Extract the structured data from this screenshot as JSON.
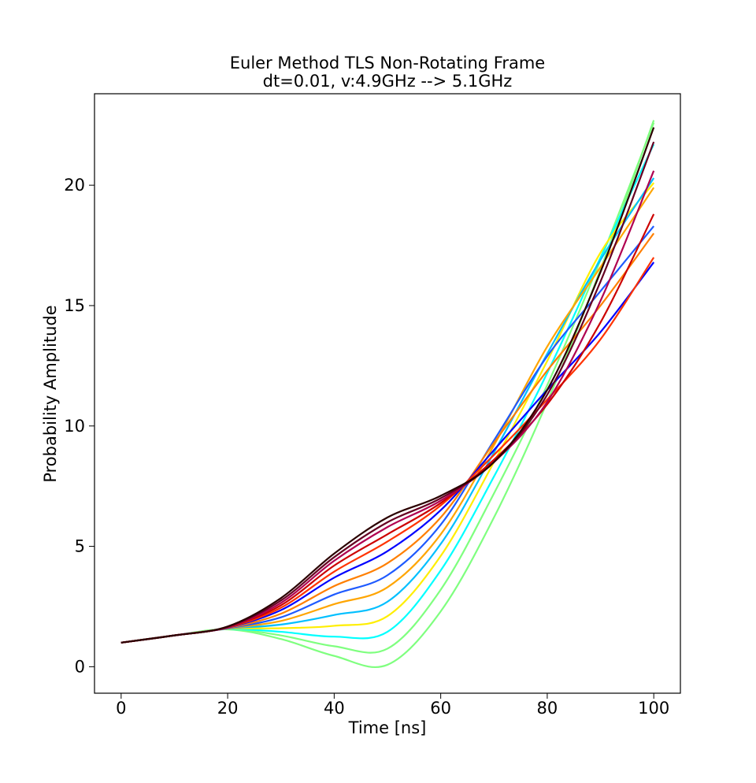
{
  "chart_data": {
    "type": "line",
    "title_line1": "Euler Method TLS Non-Rotating Frame",
    "title_line2": "dt=0.01, v:4.9GHz --> 5.1GHz",
    "xlabel": "Time [ns]",
    "ylabel": "Probability Amplitude",
    "xlim": [
      -5,
      105
    ],
    "ylim": [
      -1.1,
      23.8
    ],
    "xticks": [
      0,
      20,
      40,
      60,
      80,
      100
    ],
    "yticks": [
      0,
      5,
      10,
      15,
      20
    ],
    "xtick_labels": [
      "0",
      "20",
      "40",
      "60",
      "80",
      "100"
    ],
    "ytick_labels": [
      "0",
      "5",
      "10",
      "15",
      "20"
    ],
    "grid": false,
    "legend": "none",
    "x": [
      0,
      10,
      20,
      30,
      40,
      50,
      60,
      70,
      80,
      90,
      100
    ],
    "series": [
      {
        "color": "#7fff7f",
        "values": [
          1.0,
          1.3,
          1.55,
          1.15,
          0.45,
          0.08,
          2.3,
          6.2,
          11.0,
          16.5,
          22.7
        ]
      },
      {
        "color": "#7fff7f",
        "values": [
          1.0,
          1.3,
          1.56,
          1.3,
          0.85,
          0.75,
          3.2,
          7.2,
          11.7,
          16.9,
          22.6
        ]
      },
      {
        "color": "#00ffff",
        "values": [
          1.0,
          1.3,
          1.56,
          1.45,
          1.25,
          1.45,
          4.0,
          7.9,
          12.2,
          17.0,
          21.7
        ]
      },
      {
        "color": "#ffee00",
        "values": [
          1.0,
          1.3,
          1.57,
          1.6,
          1.7,
          2.1,
          4.6,
          8.5,
          12.7,
          17.2,
          20.1
        ]
      },
      {
        "color": "#00bfff",
        "values": [
          1.0,
          1.3,
          1.58,
          1.75,
          2.15,
          2.7,
          5.1,
          8.9,
          13.0,
          16.9,
          20.3
        ]
      },
      {
        "color": "#ffa500",
        "values": [
          1.0,
          1.3,
          1.59,
          1.9,
          2.6,
          3.3,
          5.5,
          9.2,
          13.3,
          16.6,
          19.9
        ]
      },
      {
        "color": "#1e5aff",
        "values": [
          1.0,
          1.3,
          1.6,
          2.05,
          3.0,
          3.8,
          5.9,
          9.4,
          12.9,
          15.6,
          18.3
        ]
      },
      {
        "color": "#ff7f00",
        "values": [
          1.0,
          1.3,
          1.61,
          2.2,
          3.35,
          4.3,
          6.2,
          9.3,
          12.3,
          15.0,
          18.0
        ]
      },
      {
        "color": "#0000ff",
        "values": [
          1.0,
          1.3,
          1.62,
          2.35,
          3.7,
          4.8,
          6.5,
          9.0,
          11.5,
          13.9,
          16.8
        ]
      },
      {
        "color": "#ff3300",
        "values": [
          1.0,
          1.3,
          1.63,
          2.45,
          3.95,
          5.2,
          6.7,
          8.8,
          11.1,
          13.6,
          17.0
        ]
      },
      {
        "color": "#cc0000",
        "values": [
          1.0,
          1.3,
          1.64,
          2.55,
          4.2,
          5.5,
          6.8,
          8.6,
          10.9,
          14.3,
          18.8
        ]
      },
      {
        "color": "#b00050",
        "values": [
          1.0,
          1.3,
          1.65,
          2.65,
          4.4,
          5.8,
          6.9,
          8.5,
          11.0,
          15.2,
          20.6
        ]
      },
      {
        "color": "#660022",
        "values": [
          1.0,
          1.3,
          1.66,
          2.75,
          4.55,
          6.0,
          7.0,
          8.5,
          11.3,
          16.0,
          21.8
        ]
      },
      {
        "color": "#2b0000",
        "values": [
          1.0,
          1.3,
          1.67,
          2.85,
          4.7,
          6.2,
          7.1,
          8.5,
          11.5,
          16.4,
          22.4
        ]
      }
    ]
  }
}
